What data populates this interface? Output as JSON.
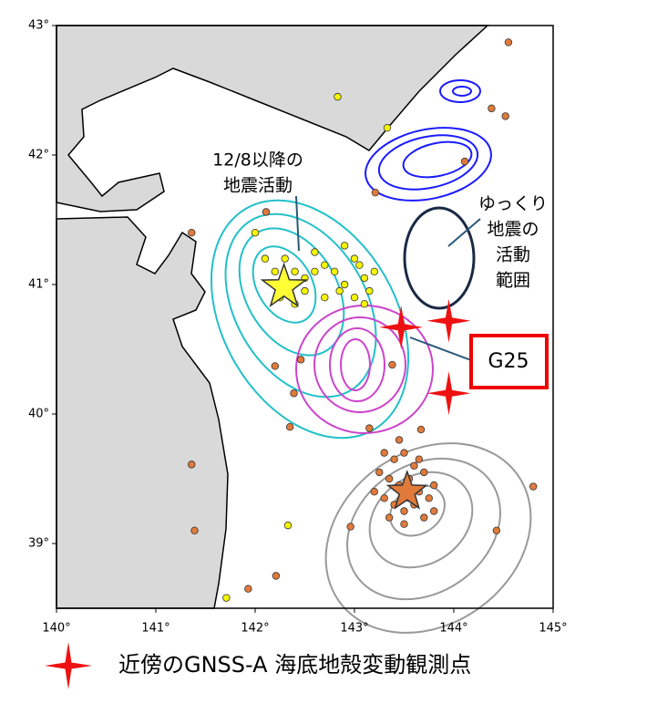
{
  "map": {
    "xlim": [
      140,
      145
    ],
    "ylim": [
      38.5,
      43
    ],
    "xticks": [
      {
        "value": 140,
        "label": "140°"
      },
      {
        "value": 141,
        "label": "141°"
      },
      {
        "value": 142,
        "label": "142°"
      },
      {
        "value": 143,
        "label": "143°"
      },
      {
        "value": 144,
        "label": "144°"
      },
      {
        "value": 145,
        "label": "145°"
      }
    ],
    "yticks": [
      {
        "value": 39,
        "label": "39°"
      },
      {
        "value": 40,
        "label": "40°"
      },
      {
        "value": 41,
        "label": "41°"
      },
      {
        "value": 42,
        "label": "42°"
      },
      {
        "value": 43,
        "label": "43°"
      }
    ],
    "annotations": {
      "recent_activity": [
        "12/8以降の",
        "地震活動"
      ],
      "slow_slip": [
        "ゆっくり",
        "地震の",
        "活動",
        "範囲"
      ],
      "station_name": "G25"
    },
    "legend": "近傍のGNSS-A 海底地殻変動観測点",
    "stations": [
      [
        143.47,
        40.67
      ],
      [
        143.95,
        40.72
      ],
      [
        143.95,
        40.16
      ]
    ],
    "mainshock_recent": [
      142.29,
      40.98
    ],
    "mainshock_past": [
      143.53,
      39.4
    ],
    "yellow_events": [
      [
        142.1,
        41.2
      ],
      [
        142.2,
        41.1
      ],
      [
        142.3,
        41.2
      ],
      [
        142.4,
        41.1
      ],
      [
        142.5,
        41.05
      ],
      [
        142.6,
        41.1
      ],
      [
        142.7,
        41.15
      ],
      [
        142.8,
        41.1
      ],
      [
        142.9,
        41.0
      ],
      [
        143.0,
        41.2
      ],
      [
        143.1,
        41.05
      ],
      [
        143.2,
        41.1
      ],
      [
        142.5,
        40.95
      ],
      [
        142.7,
        40.9
      ],
      [
        142.85,
        40.95
      ],
      [
        143.0,
        40.9
      ],
      [
        143.1,
        40.85
      ],
      [
        142.4,
        40.85
      ],
      [
        142.6,
        41.25
      ],
      [
        142.9,
        41.3
      ],
      [
        143.05,
        41.15
      ],
      [
        142.25,
        40.9
      ],
      [
        143.15,
        40.95
      ],
      [
        142.0,
        41.4
      ],
      [
        142.83,
        42.45
      ],
      [
        143.33,
        42.21
      ],
      [
        142.33,
        39.14
      ],
      [
        141.71,
        38.58
      ]
    ],
    "orange_events": [
      [
        143.3,
        39.7
      ],
      [
        143.4,
        39.65
      ],
      [
        143.5,
        39.7
      ],
      [
        143.6,
        39.6
      ],
      [
        143.7,
        39.55
      ],
      [
        143.35,
        39.5
      ],
      [
        143.45,
        39.45
      ],
      [
        143.55,
        39.5
      ],
      [
        143.65,
        39.4
      ],
      [
        143.75,
        39.35
      ],
      [
        143.3,
        39.35
      ],
      [
        143.4,
        39.3
      ],
      [
        143.5,
        39.25
      ],
      [
        143.6,
        39.3
      ],
      [
        143.7,
        39.2
      ],
      [
        143.8,
        39.45
      ],
      [
        143.25,
        39.55
      ],
      [
        143.45,
        39.8
      ],
      [
        143.55,
        39.35
      ],
      [
        143.35,
        39.2
      ],
      [
        143.65,
        39.65
      ],
      [
        143.5,
        39.15
      ],
      [
        143.2,
        39.4
      ],
      [
        143.8,
        39.25
      ],
      [
        144.55,
        42.87
      ],
      [
        144.38,
        42.36
      ],
      [
        144.52,
        42.3
      ],
      [
        144.11,
        41.95
      ],
      [
        143.21,
        41.71
      ],
      [
        142.11,
        41.56
      ],
      [
        141.36,
        41.4
      ],
      [
        144.8,
        39.44
      ],
      [
        144.43,
        39.1
      ],
      [
        141.36,
        39.61
      ],
      [
        141.39,
        39.1
      ],
      [
        141.93,
        38.65
      ],
      [
        142.21,
        38.75
      ],
      [
        142.96,
        39.13
      ],
      [
        142.2,
        40.37
      ],
      [
        142.39,
        40.16
      ],
      [
        142.35,
        39.9
      ],
      [
        142.46,
        40.42
      ],
      [
        143.15,
        39.89
      ],
      [
        143.38,
        40.38
      ],
      [
        143.67,
        39.88
      ]
    ]
  }
}
